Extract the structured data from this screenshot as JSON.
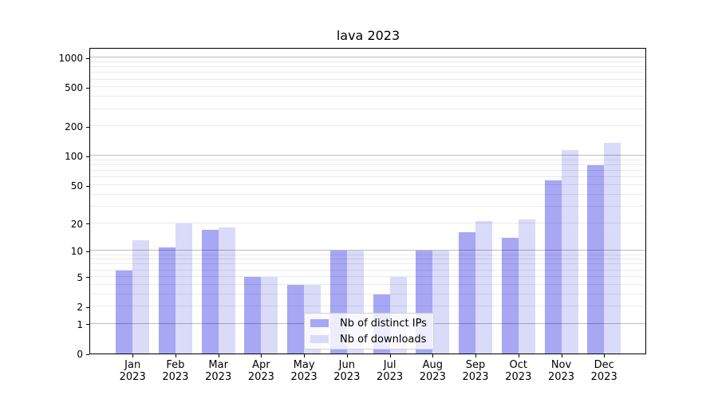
{
  "chart_data": {
    "type": "bar",
    "title": "lava 2023",
    "categories": [
      "Jan\n2023",
      "Feb\n2023",
      "Mar\n2023",
      "Apr\n2023",
      "May\n2023",
      "Jun\n2023",
      "Jul\n2023",
      "Aug\n2023",
      "Sep\n2023",
      "Oct\n2023",
      "Nov\n2023",
      "Dec\n2023"
    ],
    "series": [
      {
        "name": "Nb of distinct IPs",
        "color": "#a7a7f4",
        "values": [
          6,
          11,
          17,
          5,
          4,
          10,
          3,
          10,
          16,
          14,
          56,
          81
        ]
      },
      {
        "name": "Nb of downloads",
        "color": "#dadaf9",
        "values": [
          13,
          20,
          18,
          5,
          4,
          10,
          5,
          10,
          21,
          22,
          115,
          137
        ]
      }
    ],
    "xlabel": "",
    "ylabel": "",
    "yscale": "log1p",
    "y_ticks": [
      0,
      1,
      2,
      5,
      10,
      20,
      50,
      100,
      200,
      500,
      1000
    ],
    "ylim": [
      0,
      1280
    ],
    "grid": "horizontal, major lines at powers of 10, faint minor lines, drawn above bars",
    "legend_position": "lower center"
  },
  "colors": {
    "major_grid": "rgba(0,0,0,0.26)",
    "minor_grid": "rgba(0,0,0,0.08)",
    "axis": "#000000",
    "legend_border": "#d2d2d2",
    "background": "#ffffff"
  }
}
